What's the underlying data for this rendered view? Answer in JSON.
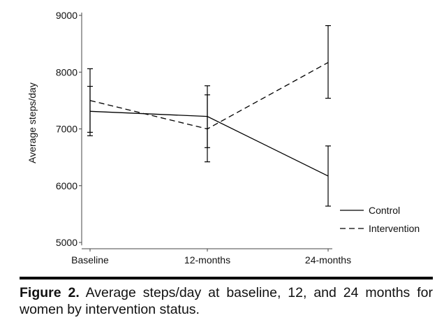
{
  "chart_data": {
    "type": "line",
    "ylabel": "Average steps/day",
    "categories": [
      "Baseline",
      "12-months",
      "24-months"
    ],
    "ylim": [
      4950,
      9050
    ],
    "yticks": [
      5000,
      6000,
      7000,
      8000,
      9000
    ],
    "grid": false,
    "legend_position": "bottom-right",
    "series": [
      {
        "name": "Control",
        "line_style": "solid",
        "values": [
          7310,
          7220,
          6170
        ],
        "error_low": [
          6880,
          6670,
          5640
        ],
        "error_high": [
          7750,
          7760,
          6700
        ]
      },
      {
        "name": "Intervention",
        "line_style": "dashed",
        "values": [
          7500,
          7000,
          8170
        ],
        "error_low": [
          6940,
          6420,
          7540
        ],
        "error_high": [
          8060,
          7600,
          8820
        ]
      }
    ]
  },
  "caption": {
    "lead": "Figure 2.",
    "text": " Average steps/day at baseline, 12, and 24 months for women by intervention status."
  }
}
